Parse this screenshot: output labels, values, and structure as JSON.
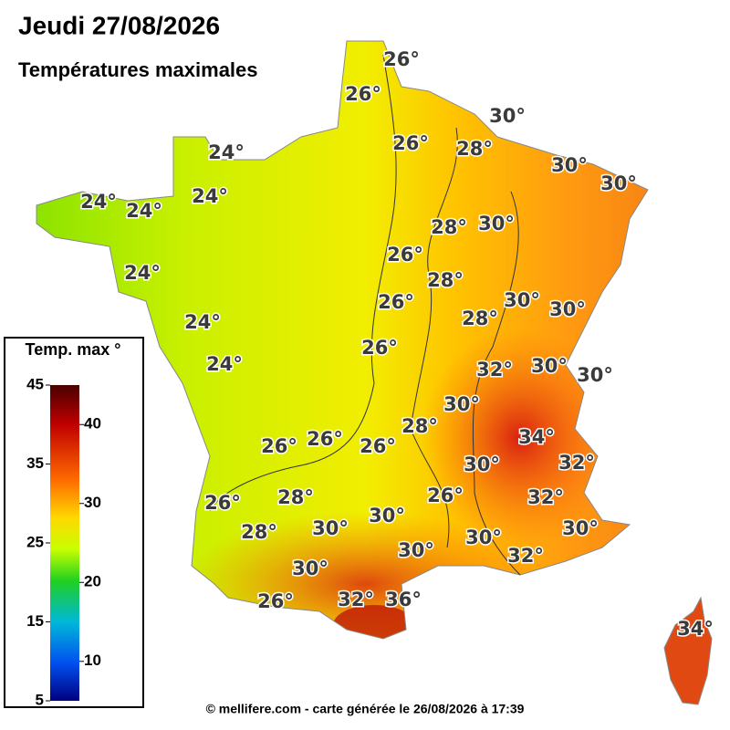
{
  "header": {
    "title": "Jeudi 27/08/2026",
    "subtitle": "Températures maximales"
  },
  "legend": {
    "title": "Temp. max °",
    "range": [
      5,
      45
    ],
    "ticks_left": [
      45,
      35,
      25,
      15,
      5
    ],
    "ticks_right": [
      40,
      30,
      20,
      10
    ]
  },
  "labels": [
    "26°",
    "26°",
    "30°",
    "26°",
    "28°",
    "24°",
    "30°",
    "30°",
    "24°",
    "24°",
    "24°",
    "28°",
    "30°",
    "26°",
    "24°",
    "28°",
    "26°",
    "30°",
    "30°",
    "28°",
    "24°",
    "26°",
    "24°",
    "32°",
    "30°",
    "30°",
    "30°",
    "28°",
    "34°",
    "32°",
    "26°",
    "26°",
    "26°",
    "30°",
    "26°",
    "28°",
    "26°",
    "32°",
    "28°",
    "30°",
    "30°",
    "30°",
    "30°",
    "30°",
    "32°",
    "30°",
    "26°",
    "32°",
    "36°",
    "34°"
  ],
  "footer": "© mellifere.com - carte générée le 26/08/2026 à 17:39"
}
